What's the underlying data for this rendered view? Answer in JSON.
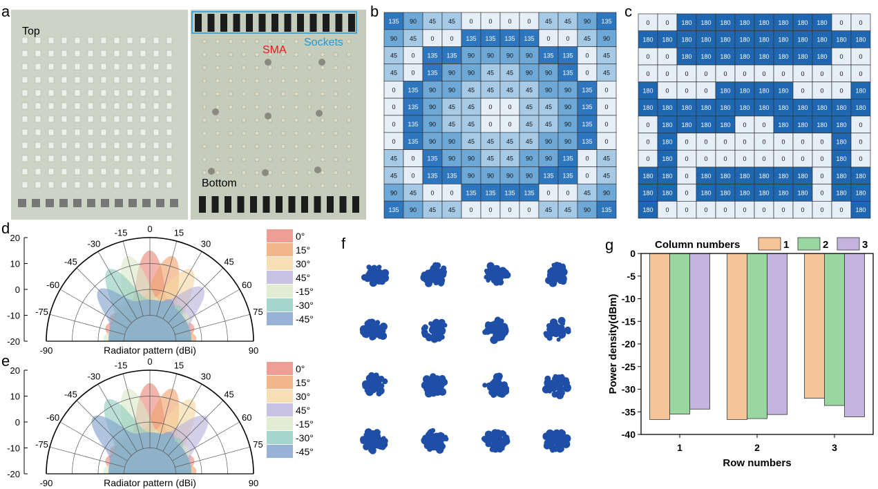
{
  "panel_letters": {
    "a": "a",
    "b": "b",
    "c": "c",
    "d": "d",
    "e": "e",
    "f": "f",
    "g": "g"
  },
  "panel_a": {
    "top_label": "Top",
    "bottom_label": "Bottom",
    "sma_label": "SMA",
    "sockets_label": "Sockets",
    "colors": {
      "board": "#c9cfc0",
      "sma": "#e01b1b",
      "sockets": "#1f9ad6"
    }
  },
  "phase_colors": {
    "0": "#e6eff8",
    "45": "#a6c9e6",
    "90": "#6da8d6",
    "135": "#2e77bf",
    "180": "#1f67b0"
  },
  "panel_b": {
    "grid": [
      [
        135,
        90,
        45,
        45,
        0,
        0,
        0,
        0,
        45,
        45,
        90,
        135
      ],
      [
        90,
        45,
        0,
        0,
        135,
        135,
        135,
        135,
        0,
        0,
        45,
        90
      ],
      [
        45,
        0,
        135,
        135,
        90,
        90,
        90,
        90,
        135,
        135,
        0,
        45
      ],
      [
        45,
        0,
        135,
        90,
        90,
        45,
        45,
        90,
        90,
        135,
        0,
        45
      ],
      [
        0,
        135,
        90,
        90,
        45,
        45,
        45,
        45,
        90,
        90,
        135,
        0
      ],
      [
        0,
        135,
        90,
        45,
        45,
        0,
        0,
        45,
        45,
        90,
        135,
        0
      ],
      [
        0,
        135,
        90,
        45,
        45,
        0,
        0,
        45,
        45,
        90,
        135,
        0
      ],
      [
        0,
        135,
        90,
        90,
        45,
        45,
        45,
        45,
        90,
        90,
        135,
        0
      ],
      [
        45,
        0,
        135,
        90,
        90,
        45,
        45,
        90,
        90,
        135,
        0,
        45
      ],
      [
        45,
        0,
        135,
        135,
        90,
        90,
        90,
        90,
        135,
        135,
        0,
        45
      ],
      [
        90,
        45,
        0,
        0,
        135,
        135,
        135,
        135,
        0,
        0,
        45,
        90
      ],
      [
        135,
        90,
        45,
        45,
        0,
        0,
        0,
        0,
        45,
        45,
        90,
        135
      ]
    ]
  },
  "panel_c": {
    "grid": [
      [
        0,
        0,
        180,
        180,
        180,
        180,
        180,
        180,
        180,
        180,
        0,
        0
      ],
      [
        180,
        180,
        180,
        180,
        180,
        180,
        180,
        180,
        180,
        180,
        180,
        180
      ],
      [
        0,
        0,
        180,
        180,
        180,
        180,
        180,
        180,
        180,
        180,
        0,
        0
      ],
      [
        0,
        0,
        0,
        0,
        0,
        0,
        0,
        0,
        0,
        0,
        0,
        0
      ],
      [
        180,
        0,
        0,
        0,
        180,
        180,
        180,
        180,
        0,
        0,
        0,
        180
      ],
      [
        180,
        180,
        180,
        180,
        180,
        180,
        180,
        180,
        180,
        180,
        180,
        180
      ],
      [
        0,
        180,
        180,
        180,
        180,
        0,
        0,
        180,
        180,
        180,
        180,
        0
      ],
      [
        0,
        180,
        0,
        0,
        0,
        0,
        0,
        0,
        0,
        0,
        180,
        0
      ],
      [
        0,
        180,
        0,
        0,
        0,
        0,
        0,
        0,
        0,
        0,
        180,
        0
      ],
      [
        180,
        180,
        0,
        180,
        180,
        180,
        180,
        180,
        180,
        0,
        180,
        180
      ],
      [
        180,
        180,
        0,
        180,
        180,
        180,
        180,
        180,
        180,
        0,
        180,
        180
      ],
      [
        180,
        0,
        0,
        0,
        0,
        0,
        0,
        0,
        0,
        0,
        0,
        180
      ]
    ]
  },
  "polar": {
    "rlim": [
      -20,
      20
    ],
    "r_ticks": [
      20,
      10,
      0,
      -10,
      -20
    ],
    "angle_ticks": [
      -90,
      -75,
      -60,
      -45,
      -30,
      -15,
      0,
      15,
      30,
      45,
      60,
      75,
      90
    ],
    "xlabel": "Radiator pattern (dBi)",
    "legend": [
      {
        "name": "0°",
        "color": "#e8877b"
      },
      {
        "name": "15°",
        "color": "#efa16c"
      },
      {
        "name": "30°",
        "color": "#f5d7a2"
      },
      {
        "name": "45°",
        "color": "#b9b1db"
      },
      {
        "name": "-15°",
        "color": "#d8e9c8"
      },
      {
        "name": "-30°",
        "color": "#8fcbbf"
      },
      {
        "name": "-45°",
        "color": "#7d9fcb"
      }
    ]
  },
  "panel_f": {
    "grid_rows": 4,
    "grid_cols": 4,
    "spot_color": "#1f4ea6"
  },
  "chart_data": [
    {
      "type": "polar",
      "panel": "d",
      "angle_range": [
        -90,
        90
      ],
      "rlim": [
        -20,
        20
      ],
      "xlabel": "Radiator pattern (dBi)",
      "series": [
        {
          "name": "0°",
          "steer_deg": 0,
          "peak_dBi": 19
        },
        {
          "name": "15°",
          "steer_deg": 15,
          "peak_dBi": 18
        },
        {
          "name": "30°",
          "steer_deg": 30,
          "peak_dBi": 16
        },
        {
          "name": "45°",
          "steer_deg": 45,
          "peak_dBi": 13
        },
        {
          "name": "-15°",
          "steer_deg": -15,
          "peak_dBi": 18
        },
        {
          "name": "-30°",
          "steer_deg": -30,
          "peak_dBi": 16
        },
        {
          "name": "-45°",
          "steer_deg": -45,
          "peak_dBi": 12
        }
      ]
    },
    {
      "type": "polar",
      "panel": "e",
      "angle_range": [
        -90,
        90
      ],
      "rlim": [
        -20,
        20
      ],
      "xlabel": "Radiator pattern (dBi)",
      "series": [
        {
          "name": "0°",
          "steer_deg": 0,
          "peak_dBi": 19
        },
        {
          "name": "15°",
          "steer_deg": 15,
          "peak_dBi": 18
        },
        {
          "name": "30°",
          "steer_deg": 30,
          "peak_dBi": 17
        },
        {
          "name": "45°",
          "steer_deg": 45,
          "peak_dBi": 15
        },
        {
          "name": "-15°",
          "steer_deg": -15,
          "peak_dBi": 18
        },
        {
          "name": "-30°",
          "steer_deg": -30,
          "peak_dBi": 17
        },
        {
          "name": "-45°",
          "steer_deg": -45,
          "peak_dBi": 15
        }
      ]
    },
    {
      "type": "bar",
      "panel": "g",
      "legend_title": "Column numbers",
      "categories": [
        "1",
        "2",
        "3"
      ],
      "xlabel": "Row numbers",
      "ylabel": "Power density(dBm)",
      "ylim": [
        -40,
        0
      ],
      "yticks": [
        0,
        -5,
        -10,
        -15,
        -20,
        -25,
        -30,
        -35,
        -40
      ],
      "series": [
        {
          "name": "1",
          "color": "#f6c49a",
          "values": [
            -36.7,
            -36.7,
            -32.0
          ]
        },
        {
          "name": "2",
          "color": "#9ad6a0",
          "values": [
            -35.5,
            -36.5,
            -33.6
          ]
        },
        {
          "name": "3",
          "color": "#c4b3de",
          "values": [
            -34.4,
            -35.6,
            -36.1
          ]
        }
      ]
    }
  ]
}
